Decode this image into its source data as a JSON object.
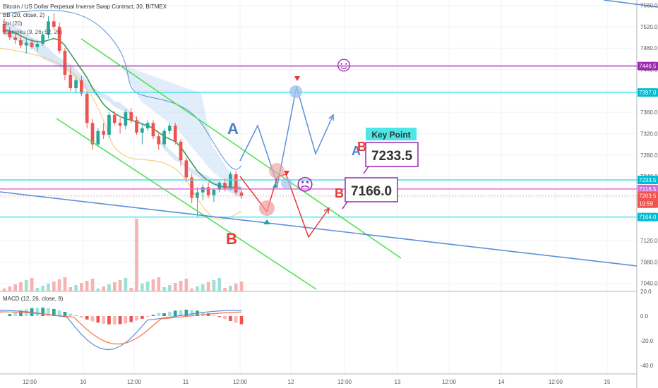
{
  "header": {
    "symbol_line": "Bitcoin / US Dollar Perpetual Inverse Swap Contract, 30, BITMEX",
    "line2": "BB (20, close, 2)",
    "line3": "Vol (20)",
    "line4": "Ichimoku (9, 26, 52, 26)"
  },
  "macd": {
    "label": "MACD (12, 26, close, 9)",
    "y_ticks": [
      "20.0",
      "0.0",
      "-20.0",
      "-40.0"
    ]
  },
  "axis": {
    "price_ticks": [
      "7560.0",
      "7520.0",
      "7480.0",
      "7440.0",
      "7400.0",
      "7360.0",
      "7320.0",
      "7280.0",
      "7240.0",
      "7200.0",
      "7160.0",
      "7120.0",
      "7080.0",
      "7040.0"
    ],
    "time_ticks": [
      "12:00",
      "10",
      "12:00",
      "11",
      "12:00",
      "12",
      "12:00",
      "13",
      "12:00",
      "14",
      "12:00",
      "15"
    ]
  },
  "price_labels": [
    {
      "text": "7446.5",
      "color": "#9c27b0",
      "price": 7446.5
    },
    {
      "text": "7397.0",
      "color": "#00bcd4",
      "price": 7397
    },
    {
      "text": "7233.5",
      "color": "#00bcd4",
      "price": 7233.5
    },
    {
      "text": "7216.5",
      "color": "#d36ed5",
      "price": 7216.5
    },
    {
      "text": "7203.5",
      "color": "#ef5350",
      "price": 7203.5
    },
    {
      "text": "19:59",
      "color": "#ef5350",
      "price": 7189
    },
    {
      "text": "7164.0",
      "color": "#00bcd4",
      "price": 7164
    }
  ],
  "annotations": {
    "key_point": "Key Point",
    "box1": "7233.5",
    "box2": "7166.0",
    "label_a1": "A",
    "label_a2": "A",
    "label_b1": "B",
    "label_b2": "B",
    "label_b3": "B",
    "smiley_happy": "☺",
    "smiley_sad": "☹"
  },
  "colors": {
    "up": "#26a69a",
    "down": "#ef5350",
    "purple": "#9c27b0",
    "cyan": "#3ee0f0",
    "green": "#4ee44e",
    "blue": "#5b8fd9",
    "pink": "#e36fd6",
    "cloud": "#bcd7f2",
    "kijun": "#3f9b5a",
    "tenkan": "#5b8fd9",
    "lag": "#f3c76b"
  },
  "chart_data": {
    "type": "candlestick",
    "interval": "30",
    "y_range": [
      7025,
      7570
    ],
    "price_levels": [
      7446.5,
      7397.0,
      7233.5,
      7216.5,
      7203.5,
      7164.0
    ],
    "ohlc": [
      [
        7525,
        7535,
        7505,
        7510
      ],
      [
        7510,
        7520,
        7495,
        7500
      ],
      [
        7500,
        7508,
        7488,
        7495
      ],
      [
        7495,
        7505,
        7480,
        7485
      ],
      [
        7485,
        7500,
        7470,
        7490
      ],
      [
        7490,
        7498,
        7478,
        7482
      ],
      [
        7482,
        7496,
        7474,
        7488
      ],
      [
        7488,
        7512,
        7484,
        7505
      ],
      [
        7505,
        7540,
        7498,
        7530
      ],
      [
        7530,
        7545,
        7515,
        7520
      ],
      [
        7520,
        7528,
        7470,
        7475
      ],
      [
        7475,
        7480,
        7420,
        7430
      ],
      [
        7430,
        7445,
        7400,
        7405
      ],
      [
        7405,
        7425,
        7395,
        7420
      ],
      [
        7420,
        7428,
        7390,
        7395
      ],
      [
        7395,
        7400,
        7330,
        7340
      ],
      [
        7340,
        7348,
        7290,
        7300
      ],
      [
        7300,
        7330,
        7295,
        7325
      ],
      [
        7325,
        7340,
        7310,
        7318
      ],
      [
        7318,
        7360,
        7312,
        7355
      ],
      [
        7355,
        7362,
        7335,
        7340
      ],
      [
        7340,
        7350,
        7320,
        7335
      ],
      [
        7335,
        7365,
        7328,
        7360
      ],
      [
        7360,
        7368,
        7340,
        7345
      ],
      [
        7345,
        7352,
        7318,
        7322
      ],
      [
        7322,
        7335,
        7300,
        7330
      ],
      [
        7330,
        7345,
        7325,
        7340
      ],
      [
        7340,
        7345,
        7310,
        7315
      ],
      [
        7315,
        7320,
        7290,
        7300
      ],
      [
        7300,
        7330,
        7295,
        7325
      ],
      [
        7325,
        7340,
        7320,
        7335
      ],
      [
        7335,
        7340,
        7300,
        7305
      ],
      [
        7305,
        7310,
        7260,
        7270
      ],
      [
        7270,
        7275,
        7230,
        7238
      ],
      [
        7238,
        7245,
        7190,
        7200
      ],
      [
        7200,
        7220,
        7165,
        7210
      ],
      [
        7210,
        7225,
        7195,
        7220
      ],
      [
        7220,
        7228,
        7200,
        7205
      ],
      [
        7205,
        7218,
        7192,
        7215
      ],
      [
        7215,
        7232,
        7210,
        7228
      ],
      [
        7228,
        7236,
        7212,
        7218
      ],
      [
        7218,
        7248,
        7214,
        7244
      ],
      [
        7244,
        7250,
        7205,
        7210
      ],
      [
        7210,
        7215,
        7198,
        7203.5
      ]
    ]
  }
}
